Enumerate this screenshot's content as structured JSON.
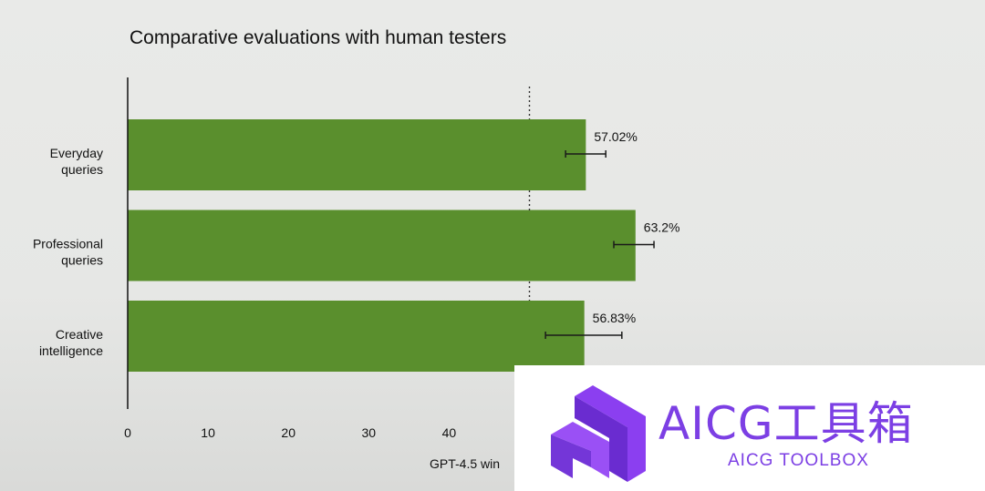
{
  "chart_data": {
    "type": "bar",
    "orientation": "horizontal",
    "title": "Comparative evaluations with human testers",
    "categories": [
      "Everyday queries",
      "Professional queries",
      "Creative intelligence"
    ],
    "category_lines": [
      [
        "Everyday",
        "queries"
      ],
      [
        "Professional",
        "queries"
      ],
      [
        "Creative",
        "intelligence"
      ]
    ],
    "values": [
      57.02,
      63.2,
      56.83
    ],
    "value_labels": [
      "57.02%",
      "63.2%",
      "56.83%"
    ],
    "error_bars": [
      [
        54.5,
        59.5
      ],
      [
        60.5,
        65.5
      ],
      [
        52.0,
        61.5
      ]
    ],
    "reference_line": 50,
    "xlim": [
      0,
      100
    ],
    "xticks": [
      "0",
      "10",
      "20",
      "30",
      "40"
    ],
    "xtick_values": [
      0,
      10,
      20,
      30,
      40
    ],
    "xlabel": "GPT-4.5 win",
    "bar_color": "#5a8f2d",
    "grid": false
  },
  "watermark": {
    "title": "AICG工具箱",
    "subtitle": "AICG TOOLBOX",
    "color": "#7c3fe4"
  }
}
